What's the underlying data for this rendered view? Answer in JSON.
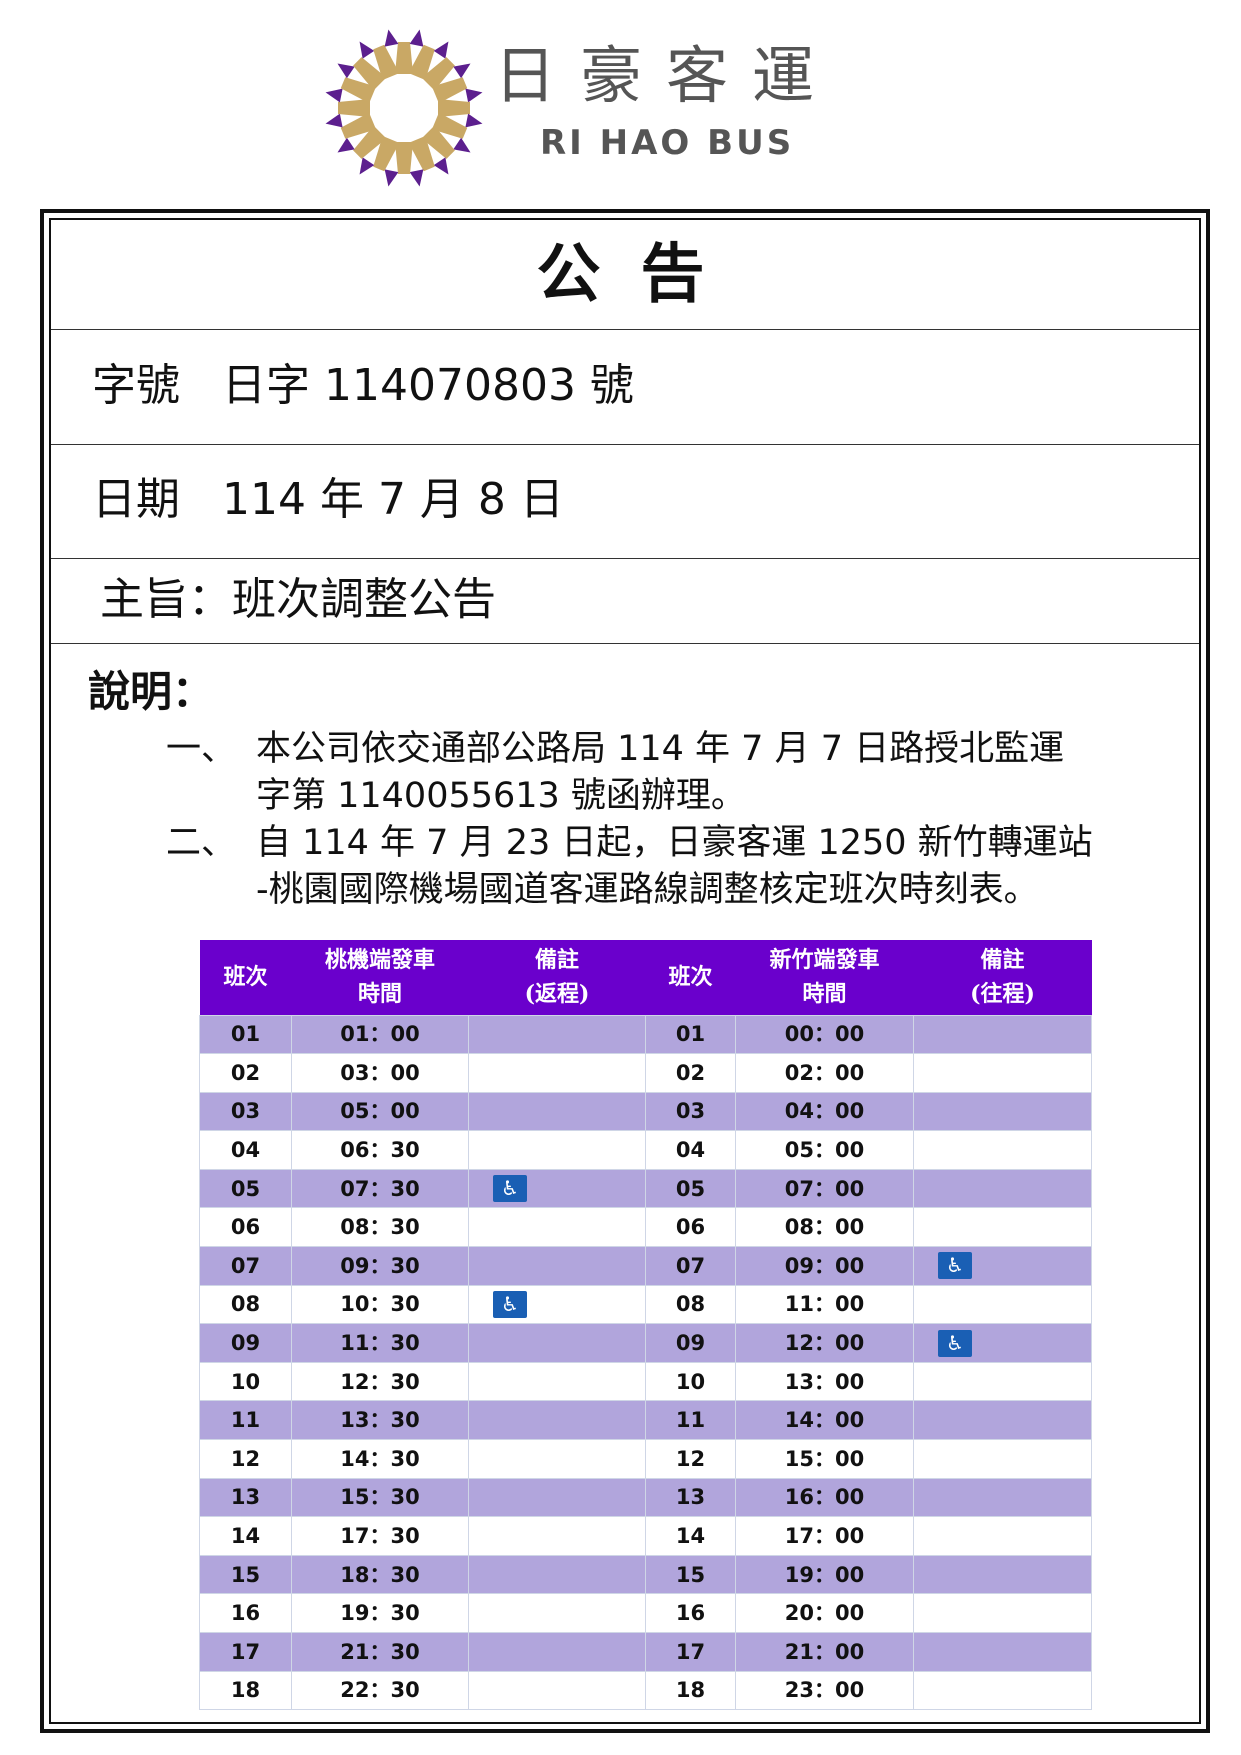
{
  "logo": {
    "name_zh": "日豪客運",
    "name_en": "RI HAO BUS",
    "colors": {
      "gold": "#c9a865",
      "purple": "#5c1f8e"
    }
  },
  "title": "公告",
  "reference": {
    "label": "字號",
    "value": "日字 114070803 號"
  },
  "date": {
    "label": "日期",
    "value": "114 年 7 月 8 日"
  },
  "subject": "主旨：班次調整公告",
  "explanation": {
    "heading": "說明：",
    "items": [
      {
        "num": "一、",
        "lines": [
          "本公司依交通部公路局 114 年 7 月 7 日路授北監運",
          "字第 1140055613 號函辦理。"
        ]
      },
      {
        "num": "二、",
        "lines": [
          "自 114 年 7 月 23 日起，日豪客運 1250 新竹轉運站",
          "-桃園國際機場國道客運路線調整核定班次時刻表。"
        ]
      }
    ]
  },
  "table": {
    "header_color": "#6a00cc",
    "stripe_color": "#b1a5dc",
    "headers": [
      "班次",
      "桃機端發車\n時間",
      "備註\n(返程)",
      "班次",
      "新竹端發車\n時間",
      "備註\n(往程)"
    ],
    "rows": [
      [
        "01",
        "01：00",
        "",
        "01",
        "00：00",
        ""
      ],
      [
        "02",
        "03：00",
        "",
        "02",
        "02：00",
        ""
      ],
      [
        "03",
        "05：00",
        "",
        "03",
        "04：00",
        ""
      ],
      [
        "04",
        "06：30",
        "",
        "04",
        "05：00",
        ""
      ],
      [
        "05",
        "07：30",
        "wheelchair",
        "05",
        "07：00",
        ""
      ],
      [
        "06",
        "08：30",
        "",
        "06",
        "08：00",
        ""
      ],
      [
        "07",
        "09：30",
        "",
        "07",
        "09：00",
        "wheelchair"
      ],
      [
        "08",
        "10：30",
        "wheelchair",
        "08",
        "11：00",
        ""
      ],
      [
        "09",
        "11：30",
        "",
        "09",
        "12：00",
        "wheelchair"
      ],
      [
        "10",
        "12：30",
        "",
        "10",
        "13：00",
        ""
      ],
      [
        "11",
        "13：30",
        "",
        "11",
        "14：00",
        ""
      ],
      [
        "12",
        "14：30",
        "",
        "12",
        "15：00",
        ""
      ],
      [
        "13",
        "15：30",
        "",
        "13",
        "16：00",
        ""
      ],
      [
        "14",
        "17：30",
        "",
        "14",
        "17：00",
        ""
      ],
      [
        "15",
        "18：30",
        "",
        "15",
        "19：00",
        ""
      ],
      [
        "16",
        "19：30",
        "",
        "16",
        "20：00",
        ""
      ],
      [
        "17",
        "21：30",
        "",
        "17",
        "21：00",
        ""
      ],
      [
        "18",
        "22：30",
        "",
        "18",
        "23：00",
        ""
      ]
    ]
  }
}
